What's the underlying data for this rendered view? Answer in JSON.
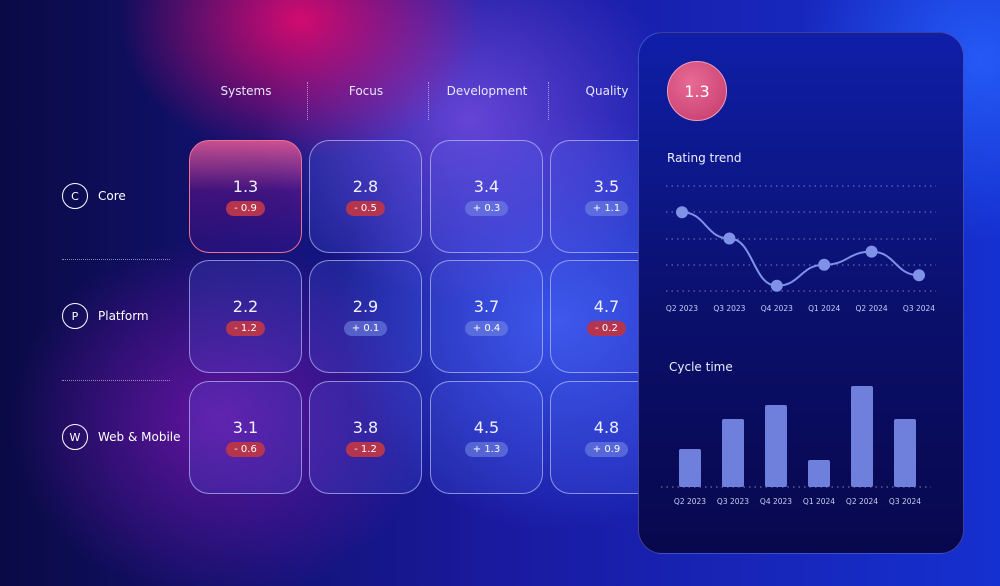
{
  "columns": [
    "Systems",
    "Focus",
    "Development",
    "Quality"
  ],
  "rows": [
    {
      "initial": "C",
      "label": "Core",
      "cells": [
        {
          "value": "1.3",
          "delta": "- 0.9",
          "trend": "neg"
        },
        {
          "value": "2.8",
          "delta": "- 0.5",
          "trend": "neg"
        },
        {
          "value": "3.4",
          "delta": "+ 0.3",
          "trend": "pos"
        },
        {
          "value": "3.5",
          "delta": "+ 1.1",
          "trend": "pos"
        }
      ]
    },
    {
      "initial": "P",
      "label": "Platform",
      "cells": [
        {
          "value": "2.2",
          "delta": "- 1.2",
          "trend": "neg"
        },
        {
          "value": "2.9",
          "delta": "+ 0.1",
          "trend": "pos"
        },
        {
          "value": "3.7",
          "delta": "+ 0.4",
          "trend": "pos"
        },
        {
          "value": "4.7",
          "delta": "- 0.2",
          "trend": "neg"
        }
      ]
    },
    {
      "initial": "W",
      "label": "Web & Mobile",
      "cells": [
        {
          "value": "3.1",
          "delta": "- 0.6",
          "trend": "neg"
        },
        {
          "value": "3.8",
          "delta": "- 1.2",
          "trend": "neg"
        },
        {
          "value": "4.5",
          "delta": "+ 1.3",
          "trend": "pos"
        },
        {
          "value": "4.8",
          "delta": "+ 0.9",
          "trend": "pos"
        }
      ]
    }
  ],
  "panel": {
    "score": "1.3"
  },
  "chart_data": [
    {
      "type": "line",
      "title": "Rating trend",
      "categories": [
        "Q2 2023",
        "Q3 2023",
        "Q4 2023",
        "Q1 2024",
        "Q2 2024",
        "Q3 2024"
      ],
      "values": [
        3,
        2,
        0.2,
        1,
        1.5,
        0.6
      ],
      "ylim": [
        0,
        4
      ],
      "grid": true
    },
    {
      "type": "bar",
      "title": "Cycle time",
      "categories": [
        "Q2 2023",
        "Q3 2023",
        "Q4 2023",
        "Q1 2024",
        "Q2 2024",
        "Q3 2024"
      ],
      "values": [
        38,
        68,
        82,
        27,
        101,
        68
      ],
      "ylim": [
        0,
        110
      ]
    }
  ]
}
